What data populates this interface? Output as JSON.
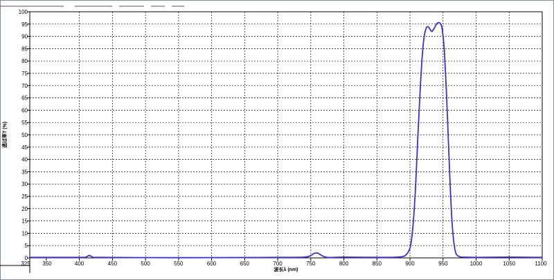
{
  "chart_data": {
    "type": "line",
    "xlabel": "波长λ (nm)",
    "ylabel": "透过率T (%)",
    "xlim": [
      325,
      1100
    ],
    "ylim": [
      0,
      100
    ],
    "x_ticks": [
      "325",
      "350",
      "400",
      "450",
      "500",
      "550",
      "600",
      "650",
      "700",
      "750",
      "800",
      "850",
      "900",
      "950",
      "1000",
      "1050",
      "1100"
    ],
    "y_ticks": [
      "0",
      "5",
      "10",
      "15",
      "20",
      "25",
      "30",
      "35",
      "40",
      "45",
      "50",
      "55",
      "60",
      "65",
      "70",
      "75",
      "80",
      "85",
      "90",
      "95",
      "100"
    ],
    "grid": true,
    "series": [
      {
        "color": "#3b2fd6",
        "x": [
          325,
          350,
          400,
          410,
          415,
          420,
          430,
          500,
          600,
          700,
          740,
          750,
          755,
          760,
          765,
          775,
          800,
          860,
          880,
          890,
          895,
          900,
          903,
          906,
          909,
          912,
          915,
          918,
          921,
          924,
          927,
          930,
          933,
          936,
          939,
          942,
          945,
          948,
          950,
          952,
          955,
          958,
          961,
          964,
          967,
          970,
          975,
          980,
          1000,
          1050,
          1100
        ],
        "y": [
          0.2,
          0.2,
          0.2,
          0.3,
          1.0,
          0.3,
          0.2,
          0.1,
          0.1,
          0.2,
          0.3,
          1.0,
          1.8,
          2.0,
          1.2,
          0.2,
          0.3,
          0.2,
          0.3,
          0.6,
          1.5,
          4,
          9,
          18,
          32,
          50,
          66,
          80,
          89,
          93,
          94,
          93,
          92,
          93,
          94.5,
          95.5,
          95.5,
          94,
          90,
          84,
          68,
          48,
          28,
          13,
          5,
          1.5,
          0.5,
          0.3,
          0.2,
          0.3,
          0.2
        ]
      }
    ]
  }
}
